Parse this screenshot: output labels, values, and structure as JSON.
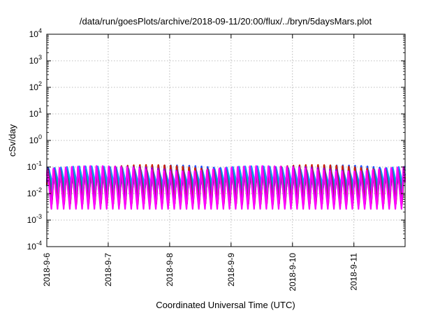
{
  "chart_data": {
    "type": "line",
    "title": "/data/run/goesPlots/archive/2018-09-11/20:00/flux/../bryn/5daysMars.plot",
    "xlabel": "Coordinated Universal Time (UTC)",
    "ylabel": "cSv/day",
    "y_scale": "log",
    "ylim": [
      0.0001,
      10000
    ],
    "y_ticks": [
      {
        "value": 0.0001,
        "base": "10",
        "exp": "-4"
      },
      {
        "value": 0.001,
        "base": "10",
        "exp": "-3"
      },
      {
        "value": 0.01,
        "base": "10",
        "exp": "-2"
      },
      {
        "value": 0.1,
        "base": "10",
        "exp": "-1"
      },
      {
        "value": 1,
        "base": "10",
        "exp": "0"
      },
      {
        "value": 10,
        "base": "10",
        "exp": "1"
      },
      {
        "value": 100,
        "base": "10",
        "exp": "2"
      },
      {
        "value": 1000,
        "base": "10",
        "exp": "3"
      },
      {
        "value": 10000,
        "base": "10",
        "exp": "4"
      }
    ],
    "x_ticks": [
      "2018-9-6",
      "2018-9-7",
      "2018-9-8",
      "2018-9-9",
      "2018-9-10",
      "2018-9-11"
    ],
    "xlim": [
      "2018-09-06 00:00",
      "2018-09-11 20:00"
    ],
    "grid": true,
    "cycles_per_day": 10,
    "series": [
      {
        "color": "#ff00ff",
        "peak": 0.1,
        "trough": 0.0025
      },
      {
        "color": "#9400d3",
        "peak": 0.095,
        "trough": 0.0035
      },
      {
        "color": "#cc2200",
        "peak": 0.11,
        "trough": 0.004
      },
      {
        "color": "#2050ff",
        "peak": 0.105,
        "trough": 0.006
      },
      {
        "color": "#009e73",
        "peak": 0.06,
        "trough": 0.012
      },
      {
        "color": "#00b0d0",
        "peak": 0.07,
        "trough": 0.015
      },
      {
        "color": "#1e90ff",
        "peak": 0.09,
        "trough": 0.02
      }
    ]
  }
}
